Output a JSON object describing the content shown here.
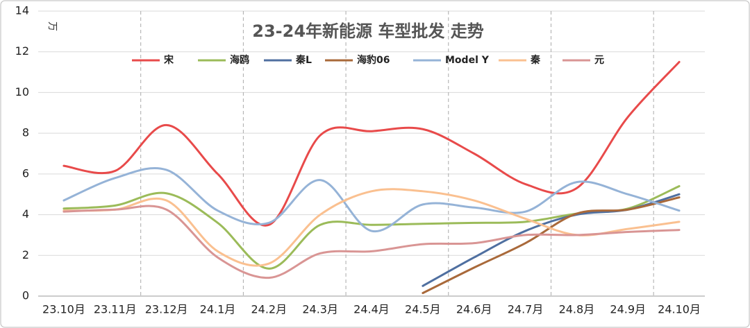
{
  "chart_data": {
    "type": "line",
    "title": "23-24年新能源 车型批发 走势",
    "y_label": "万",
    "categories": [
      "23.10月",
      "23.11月",
      "23.12月",
      "24.1月",
      "24.2月",
      "24.3月",
      "24.4月",
      "24.5月",
      "24.6月",
      "24.7月",
      "24.8月",
      "24.9月",
      "24.10月"
    ],
    "series": [
      {
        "name": "宋",
        "color": "#e84a4a",
        "values": [
          6.4,
          6.15,
          8.4,
          6.0,
          3.5,
          7.9,
          8.1,
          8.2,
          7.0,
          5.5,
          5.3,
          8.8,
          11.5
        ]
      },
      {
        "name": "海鸥",
        "color": "#9bbb59",
        "values": [
          4.3,
          4.45,
          5.05,
          3.6,
          1.35,
          3.5,
          3.5,
          3.55,
          3.6,
          3.65,
          4.05,
          4.3,
          5.4
        ]
      },
      {
        "name": "秦L",
        "color": "#4f6fa0",
        "values": [
          null,
          null,
          null,
          null,
          null,
          null,
          null,
          0.5,
          1.9,
          3.2,
          4.0,
          4.25,
          5.0
        ]
      },
      {
        "name": "海豹06",
        "color": "#a9693a",
        "values": [
          null,
          null,
          null,
          null,
          null,
          null,
          null,
          0.15,
          1.4,
          2.6,
          4.05,
          4.25,
          4.85
        ]
      },
      {
        "name": "Model Y",
        "color": "#95b3d7",
        "values": [
          4.7,
          5.8,
          6.2,
          4.2,
          3.6,
          5.7,
          3.2,
          4.5,
          4.35,
          4.15,
          5.6,
          5.0,
          4.2
        ]
      },
      {
        "name": "秦",
        "color": "#fac090",
        "values": [
          4.2,
          4.25,
          4.7,
          2.2,
          1.6,
          4.0,
          5.15,
          5.15,
          4.7,
          3.8,
          3.0,
          3.3,
          3.65
        ]
      },
      {
        "name": "元",
        "color": "#d99594",
        "values": [
          4.15,
          4.25,
          4.25,
          1.9,
          0.9,
          2.1,
          2.2,
          2.55,
          2.6,
          3.0,
          3.0,
          3.15,
          3.25
        ]
      }
    ],
    "ylim": [
      0,
      14
    ],
    "yticks": [
      0,
      2,
      4,
      6,
      8,
      10,
      12,
      14
    ],
    "grid": true
  }
}
